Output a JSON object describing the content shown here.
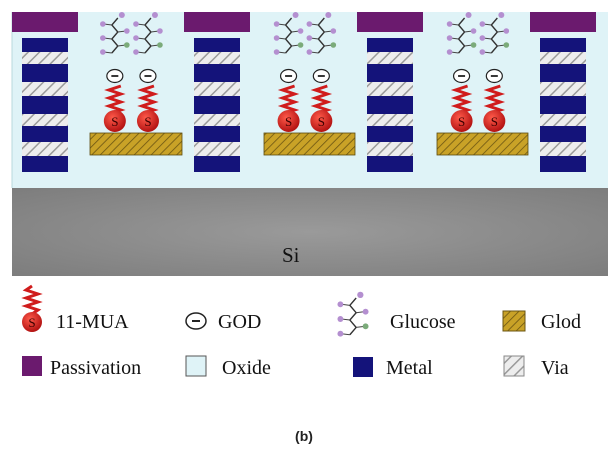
{
  "substrate": {
    "label": "Si"
  },
  "legend": {
    "mua": "11-MUA",
    "god": "GOD",
    "glucose": "Glucose",
    "gold": "Glod",
    "passivation": "Passivation",
    "oxide": "Oxide",
    "metal": "Metal",
    "via": "Via"
  },
  "caption": "(b)",
  "colors": {
    "passivation": "#6b1a6e",
    "oxide": "#dff3f7",
    "metal": "#14137a",
    "via_hatch": "#9a9a9a",
    "gold": "#c9a227",
    "silicon": "#8a8a8a",
    "mua": "#d01c1c",
    "glucose_node": "#b48fd0",
    "glucose_node_alt": "#7bab7a"
  },
  "mua_symbol_letter": "S"
}
